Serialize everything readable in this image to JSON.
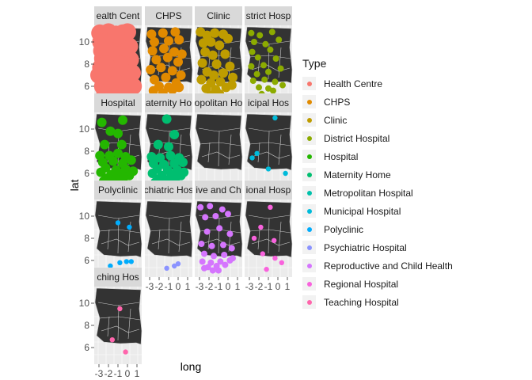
{
  "chart_data": {
    "type": "scatter",
    "facet_layout": "wrap",
    "xlabel": "long",
    "ylabel": "lat",
    "x_ticks": [
      "-3",
      "-2",
      "-1",
      "0",
      "1"
    ],
    "y_ticks": [
      "10",
      "8",
      "6"
    ],
    "xlim": [
      -3.5,
      1.5
    ],
    "ylim": [
      4.5,
      11.5
    ],
    "panel_background": "#ebebeb",
    "strip_background": "#d9d9d9",
    "map_fill": "#333333",
    "map_border": "#cccccc",
    "legend": {
      "title": "Type",
      "position": "right",
      "items": [
        {
          "label": "Health Centre",
          "color": "#F8766D"
        },
        {
          "label": "CHPS",
          "color": "#E18A00"
        },
        {
          "label": "Clinic",
          "color": "#BE9C00"
        },
        {
          "label": "District Hospital",
          "color": "#8CAB00"
        },
        {
          "label": "Hospital",
          "color": "#24B700"
        },
        {
          "label": "Maternity Home",
          "color": "#00BE70"
        },
        {
          "label": "Metropolitan Hospital",
          "color": "#00C1AB"
        },
        {
          "label": "Municipal Hospital",
          "color": "#00BBDA"
        },
        {
          "label": "Polyclinic",
          "color": "#00ACFC"
        },
        {
          "label": "Psychiatric Hospital",
          "color": "#8B93FF"
        },
        {
          "label": "Reproductive and Child Health",
          "color": "#D575FE"
        },
        {
          "label": "Regional Hospital",
          "color": "#F962DD"
        },
        {
          "label": "Teaching Hospital",
          "color": "#FF65AC"
        }
      ]
    },
    "panels": [
      {
        "strip": "ealth Cent",
        "color": "#F8766D",
        "density": "very high",
        "points": [
          [
            -2.9,
            10.8
          ],
          [
            -2.0,
            10.9
          ],
          [
            -0.5,
            10.8
          ],
          [
            -2.8,
            10.0
          ],
          [
            -1.5,
            10.2
          ],
          [
            -0.3,
            10.3
          ],
          [
            -2.7,
            9.2
          ],
          [
            -1.0,
            9.5
          ],
          [
            0.2,
            9.6
          ],
          [
            -2.6,
            8.5
          ],
          [
            -1.8,
            8.8
          ],
          [
            -0.4,
            8.6
          ],
          [
            0.3,
            8.4
          ],
          [
            -2.8,
            7.7
          ],
          [
            -1.4,
            7.5
          ],
          [
            -0.2,
            7.9
          ],
          [
            0.5,
            7.2
          ],
          [
            -3.0,
            7.0
          ],
          [
            -2.0,
            6.6
          ],
          [
            -1.0,
            6.9
          ],
          [
            0.2,
            6.6
          ],
          [
            -2.6,
            6.0
          ],
          [
            -1.6,
            6.1
          ],
          [
            -0.6,
            6.0
          ],
          [
            0.6,
            6.0
          ],
          [
            -2.1,
            5.4
          ],
          [
            -1.1,
            5.6
          ],
          [
            -0.1,
            5.7
          ],
          [
            -1.5,
            5.0
          ],
          [
            -2.4,
            5.2
          ],
          [
            -1.9,
            9.8
          ],
          [
            -0.8,
            8.0
          ],
          [
            -2.3,
            8.0
          ],
          [
            0.0,
            10.9
          ],
          [
            -1.2,
            10.7
          ],
          [
            -2.5,
            7.3
          ]
        ]
      },
      {
        "strip": "CHPS",
        "color": "#E18A00",
        "density": "high",
        "points": [
          [
            -2.8,
            10.7
          ],
          [
            -1.6,
            10.8
          ],
          [
            -0.3,
            10.9
          ],
          [
            -2.5,
            10.0
          ],
          [
            -1.0,
            10.1
          ],
          [
            0.1,
            10.2
          ],
          [
            -2.7,
            9.2
          ],
          [
            -1.5,
            9.4
          ],
          [
            -0.4,
            9.1
          ],
          [
            -2.3,
            8.4
          ],
          [
            -1.1,
            8.6
          ],
          [
            0.0,
            8.2
          ],
          [
            0.4,
            8.9
          ],
          [
            -2.9,
            7.5
          ],
          [
            -1.8,
            7.7
          ],
          [
            -0.6,
            7.4
          ],
          [
            0.3,
            7.0
          ],
          [
            -2.5,
            6.6
          ],
          [
            -1.3,
            6.8
          ],
          [
            -0.2,
            6.3
          ],
          [
            -2.0,
            6.0
          ],
          [
            -1.0,
            5.9
          ],
          [
            0.1,
            5.9
          ],
          [
            -1.6,
            5.4
          ],
          [
            -2.6,
            5.6
          ],
          [
            -0.6,
            5.7
          ]
        ]
      },
      {
        "strip": "Clinic",
        "color": "#BE9C00",
        "density": "high",
        "points": [
          [
            -2.9,
            10.9
          ],
          [
            -2.2,
            10.6
          ],
          [
            -1.4,
            10.8
          ],
          [
            -0.5,
            10.7
          ],
          [
            0.0,
            10.3
          ],
          [
            -2.6,
            9.9
          ],
          [
            -1.8,
            10.0
          ],
          [
            -0.9,
            9.7
          ],
          [
            -2.4,
            9.1
          ],
          [
            -1.6,
            8.8
          ],
          [
            -0.3,
            8.9
          ],
          [
            -2.7,
            8.1
          ],
          [
            -1.2,
            8.0
          ],
          [
            0.2,
            7.8
          ],
          [
            -2.2,
            7.3
          ],
          [
            -1.5,
            7.0
          ],
          [
            -0.5,
            7.2
          ],
          [
            0.5,
            6.8
          ],
          [
            -2.8,
            6.6
          ],
          [
            -1.8,
            6.3
          ],
          [
            -0.8,
            6.4
          ],
          [
            0.4,
            6.1
          ],
          [
            -2.3,
            5.8
          ],
          [
            -1.3,
            5.7
          ],
          [
            -0.2,
            5.9
          ],
          [
            -1.8,
            5.2
          ],
          [
            -0.9,
            5.3
          ]
        ]
      },
      {
        "strip": "strict Hosp",
        "color": "#8CAB00",
        "density": "medium",
        "points": [
          [
            -2.8,
            10.8
          ],
          [
            -1.9,
            10.6
          ],
          [
            -0.6,
            10.9
          ],
          [
            0.1,
            10.2
          ],
          [
            -2.5,
            10.0
          ],
          [
            -1.3,
            9.8
          ],
          [
            -2.7,
            9.1
          ],
          [
            -0.8,
            9.3
          ],
          [
            -2.1,
            8.6
          ],
          [
            -0.2,
            8.5
          ],
          [
            -2.8,
            7.8
          ],
          [
            -1.5,
            7.9
          ],
          [
            0.3,
            7.6
          ],
          [
            -2.2,
            7.1
          ],
          [
            -1.0,
            7.3
          ],
          [
            -2.6,
            6.5
          ],
          [
            -1.4,
            6.6
          ],
          [
            -0.3,
            6.4
          ],
          [
            0.5,
            6.1
          ],
          [
            -2.0,
            5.9
          ],
          [
            -1.0,
            5.8
          ],
          [
            -1.7,
            5.3
          ],
          [
            -0.5,
            5.6
          ]
        ]
      },
      {
        "strip": "Hospital",
        "color": "#24B700",
        "density": "high",
        "points": [
          [
            -2.7,
            10.6
          ],
          [
            -0.5,
            10.8
          ],
          [
            -1.8,
            9.8
          ],
          [
            -1.0,
            9.6
          ],
          [
            -2.4,
            8.6
          ],
          [
            -0.6,
            8.6
          ],
          [
            -2.9,
            7.6
          ],
          [
            -1.9,
            7.6
          ],
          [
            -1.0,
            7.8
          ],
          [
            -0.2,
            7.5
          ],
          [
            0.4,
            7.2
          ],
          [
            -2.6,
            7.0
          ],
          [
            -1.5,
            7.1
          ],
          [
            -0.5,
            6.9
          ],
          [
            -2.3,
            6.5
          ],
          [
            -1.2,
            6.3
          ],
          [
            -0.2,
            6.4
          ],
          [
            0.6,
            6.2
          ],
          [
            -2.8,
            6.1
          ],
          [
            -1.7,
            5.9
          ],
          [
            -0.7,
            6.0
          ],
          [
            0.2,
            5.8
          ],
          [
            -2.1,
            5.6
          ],
          [
            -1.2,
            5.5
          ],
          [
            -0.4,
            5.6
          ],
          [
            -1.6,
            5.2
          ],
          [
            -2.5,
            5.3
          ],
          [
            -0.9,
            5.1
          ]
        ]
      },
      {
        "strip": "aternity Ho",
        "color": "#00BE70",
        "density": "high",
        "points": [
          [
            -1.2,
            10.9
          ],
          [
            -0.4,
            9.5
          ],
          [
            -2.1,
            8.6
          ],
          [
            -1.0,
            8.4
          ],
          [
            -2.8,
            7.5
          ],
          [
            -1.9,
            7.4
          ],
          [
            -0.8,
            7.6
          ],
          [
            0.1,
            7.4
          ],
          [
            0.5,
            7.0
          ],
          [
            -2.6,
            6.9
          ],
          [
            -1.5,
            6.8
          ],
          [
            -0.4,
            6.9
          ],
          [
            -2.2,
            6.4
          ],
          [
            -1.1,
            6.3
          ],
          [
            -0.1,
            6.3
          ],
          [
            0.6,
            6.1
          ],
          [
            -2.7,
            6.0
          ],
          [
            -1.7,
            5.8
          ],
          [
            -0.7,
            5.9
          ],
          [
            0.3,
            5.8
          ],
          [
            -2.0,
            5.5
          ],
          [
            -1.1,
            5.4
          ],
          [
            -0.3,
            5.5
          ],
          [
            -1.5,
            5.1
          ],
          [
            -2.4,
            5.2
          ]
        ]
      },
      {
        "strip": "opolitan Ho",
        "color": "#00C1AB",
        "density": "none",
        "points": []
      },
      {
        "strip": "icipal Hos",
        "color": "#00BBDA",
        "density": "low",
        "points": [
          [
            -0.3,
            11.0
          ],
          [
            -2.7,
            7.4
          ],
          [
            -2.2,
            7.8
          ],
          [
            0.8,
            6.0
          ],
          [
            -1.0,
            6.4
          ]
        ]
      },
      {
        "strip": "Polyclinic",
        "color": "#00ACFC",
        "density": "low",
        "points": [
          [
            -1.0,
            9.4
          ],
          [
            0.2,
            9.0
          ],
          [
            -1.8,
            5.5
          ],
          [
            -0.8,
            5.8
          ],
          [
            -0.1,
            5.9
          ],
          [
            0.4,
            5.9
          ],
          [
            -2.3,
            5.1
          ],
          [
            -1.5,
            5.0
          ]
        ]
      },
      {
        "strip": "chiatric Hos",
        "color": "#8B93FF",
        "density": "low",
        "points": [
          [
            -1.2,
            5.3
          ],
          [
            -0.4,
            5.5
          ],
          [
            0.0,
            5.7
          ]
        ]
      },
      {
        "strip": "ive and Ch",
        "color": "#D575FE",
        "density": "medium",
        "points": [
          [
            -2.9,
            10.8
          ],
          [
            -1.9,
            10.9
          ],
          [
            -0.6,
            10.6
          ],
          [
            0.0,
            10.2
          ],
          [
            -2.4,
            9.9
          ],
          [
            -1.3,
            10.0
          ],
          [
            -2.2,
            8.6
          ],
          [
            -0.9,
            8.9
          ],
          [
            0.2,
            8.4
          ],
          [
            -2.8,
            7.5
          ],
          [
            -1.7,
            7.3
          ],
          [
            -0.5,
            7.4
          ],
          [
            0.4,
            7.1
          ],
          [
            -2.5,
            6.6
          ],
          [
            -1.5,
            6.4
          ],
          [
            -0.4,
            6.5
          ],
          [
            0.5,
            6.2
          ],
          [
            -2.7,
            5.9
          ],
          [
            -1.8,
            5.8
          ],
          [
            -0.8,
            5.9
          ],
          [
            0.2,
            6.0
          ],
          [
            -2.1,
            5.4
          ],
          [
            -1.2,
            5.5
          ],
          [
            -0.3,
            5.6
          ],
          [
            -1.6,
            5.1
          ],
          [
            -2.5,
            5.3
          ],
          [
            -1.0,
            5.1
          ]
        ]
      },
      {
        "strip": "ional Hosp",
        "color": "#F962DD",
        "density": "low",
        "points": [
          [
            -0.8,
            10.8
          ],
          [
            -1.8,
            9.0
          ],
          [
            -2.5,
            8.0
          ],
          [
            -0.4,
            7.8
          ],
          [
            -1.6,
            6.6
          ],
          [
            -0.3,
            6.2
          ],
          [
            0.4,
            5.8
          ],
          [
            -1.2,
            5.2
          ]
        ]
      },
      {
        "strip": "ching Hos",
        "color": "#FF65AC",
        "density": "low",
        "points": [
          [
            -0.8,
            9.5
          ],
          [
            -1.6,
            6.7
          ],
          [
            -0.2,
            5.6
          ]
        ]
      }
    ]
  }
}
